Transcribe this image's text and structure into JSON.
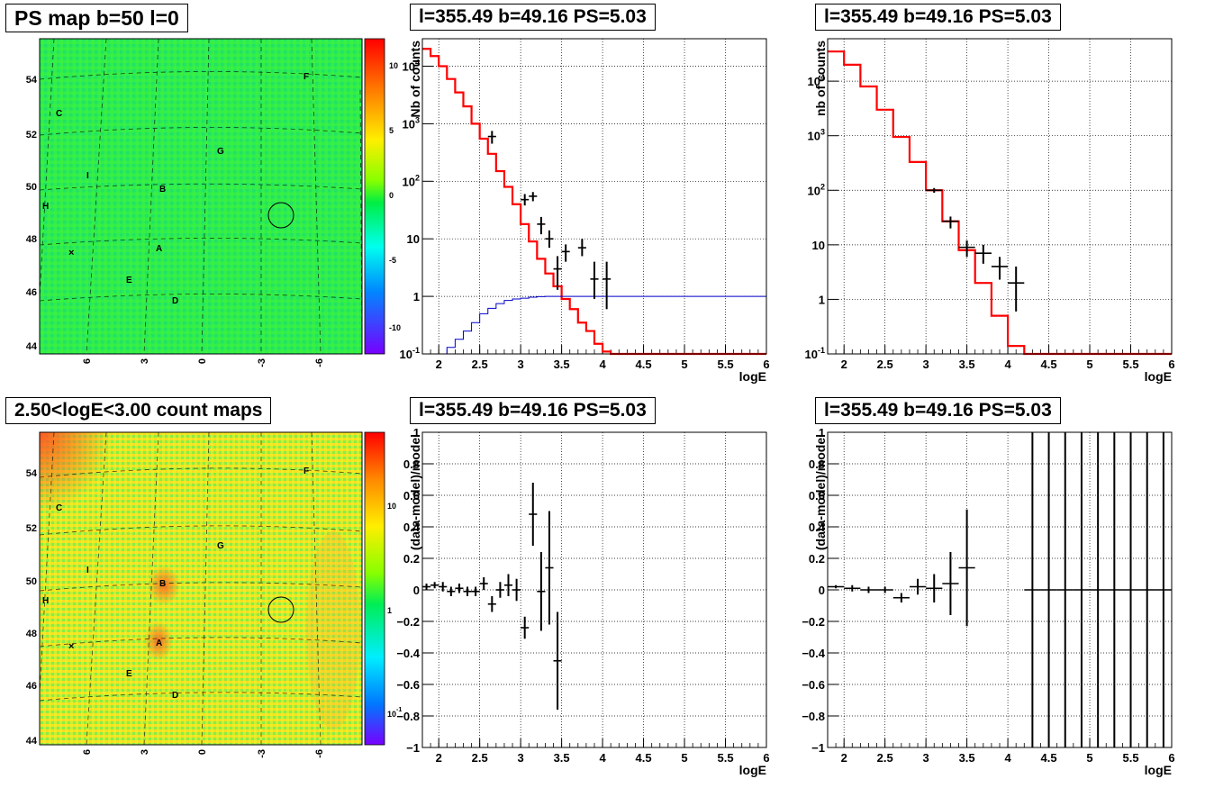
{
  "titles": {
    "psmap": "PS map b=50 l=0",
    "countmap": "2.50<logE<3.00 count maps",
    "spec1": "l=355.49 b=49.16 PS=5.03",
    "spec2": "l=355.49 b=49.16 PS=5.03",
    "resid1": "l=355.49 b=49.16 PS=5.03",
    "resid2": "l=355.49 b=49.16 PS=5.03"
  },
  "chart_data": [
    {
      "id": "psmap",
      "type": "heatmap",
      "title": "PS map b=50 l=0",
      "y_ticks": [
        "44",
        "46",
        "48",
        "50",
        "52",
        "54"
      ],
      "x_ticks": [
        "6",
        "3",
        "0",
        "-3",
        "-6"
      ],
      "colorbar_ticks": [
        "10",
        "5",
        "0",
        "-5",
        "-10"
      ],
      "zlim": [
        -13,
        13
      ],
      "source_labels": [
        "F",
        "C",
        "G",
        "I",
        "B",
        "H",
        "A",
        "E",
        "D"
      ],
      "markers": [
        "x",
        "circle"
      ]
    },
    {
      "id": "countmap",
      "type": "heatmap",
      "title": "2.50<logE<3.00 count maps",
      "y_ticks": [
        "44",
        "46",
        "48",
        "50",
        "52",
        "54"
      ],
      "x_ticks": [
        "6",
        "3",
        "0",
        "-3",
        "-6"
      ],
      "colorbar_ticks": [
        "10",
        "1",
        "10^-1"
      ],
      "zscale": "log",
      "source_labels": [
        "F",
        "C",
        "G",
        "I",
        "B",
        "H",
        "A",
        "E",
        "D"
      ],
      "markers": [
        "x",
        "circle"
      ]
    },
    {
      "id": "spec1",
      "type": "line",
      "title": "l=355.49 b=49.16 PS=5.03",
      "xlabel": "logE",
      "ylabel": "Nb of counts",
      "yscale": "log",
      "xlim": [
        1.8,
        6
      ],
      "ylim": [
        0.1,
        30000
      ],
      "x_ticks": [
        "2",
        "2.5",
        "3",
        "3.5",
        "4",
        "4.5",
        "5",
        "5.5",
        "6"
      ],
      "y_ticks": [
        "10^-1",
        "1",
        "10",
        "10^2",
        "10^3",
        "10^4"
      ],
      "grid": true,
      "series": [
        {
          "style": "step",
          "color": "#ff0000",
          "edges": [
            1.8,
            1.9,
            2.0,
            2.1,
            2.2,
            2.3,
            2.4,
            2.5,
            2.6,
            2.7,
            2.8,
            2.9,
            3.0,
            3.1,
            3.2,
            3.3,
            3.4,
            3.5,
            3.6,
            3.7,
            3.8,
            3.9,
            4.0,
            4.1,
            4.2,
            6.0
          ],
          "values": [
            20000,
            15000,
            10000,
            6000,
            3500,
            2000,
            1000,
            550,
            300,
            150,
            80,
            40,
            18,
            9,
            4.5,
            2.5,
            1.5,
            0.9,
            0.6,
            0.35,
            0.25,
            0.15,
            0.11,
            0.1,
            0.1
          ]
        },
        {
          "style": "step",
          "color": "#0000cc",
          "edges": [
            1.8,
            1.9,
            2.0,
            2.1,
            2.2,
            2.3,
            2.4,
            2.5,
            2.6,
            2.7,
            2.8,
            2.9,
            3.0,
            3.1,
            3.2,
            3.3,
            3.4,
            6.0
          ],
          "values": [
            0.07,
            0.08,
            0.1,
            0.13,
            0.18,
            0.25,
            0.35,
            0.5,
            0.62,
            0.75,
            0.85,
            0.9,
            0.93,
            0.97,
            0.99,
            1.0,
            1.0
          ]
        },
        {
          "style": "errorbars",
          "color": "#000000",
          "x": [
            2.65,
            3.05,
            3.15,
            3.25,
            3.35,
            3.45,
            3.55,
            3.75,
            3.9,
            4.05
          ],
          "y": [
            600,
            48,
            55,
            18,
            10,
            3,
            6,
            7,
            2,
            2
          ],
          "ylow": [
            450,
            38,
            45,
            12,
            7,
            1.3,
            4,
            5,
            0.9,
            0.6
          ],
          "yhigh": [
            750,
            60,
            65,
            24,
            14,
            5,
            8,
            10,
            4,
            4
          ],
          "xerr": 0.05
        }
      ]
    },
    {
      "id": "spec2",
      "type": "line",
      "title": "l=355.49 b=49.16 PS=5.03",
      "xlabel": "logE",
      "ylabel": "nb of counts",
      "yscale": "log",
      "xlim": [
        1.8,
        6
      ],
      "ylim": [
        0.1,
        60000
      ],
      "x_ticks": [
        "2",
        "2.5",
        "3",
        "3.5",
        "4",
        "4.5",
        "5",
        "5.5",
        "6"
      ],
      "y_ticks": [
        "10^-1",
        "1",
        "10",
        "10^2",
        "10^3",
        "10^4"
      ],
      "grid": true,
      "series": [
        {
          "style": "step",
          "color": "#ff0000",
          "edges": [
            1.8,
            2.0,
            2.2,
            2.4,
            2.6,
            2.8,
            3.0,
            3.2,
            3.4,
            3.6,
            3.8,
            4.0,
            4.2,
            6.0
          ],
          "values": [
            35000,
            20000,
            8000,
            3000,
            950,
            330,
            100,
            27,
            8,
            2,
            0.5,
            0.14,
            0.1
          ]
        },
        {
          "style": "errorbars",
          "color": "#000000",
          "x": [
            3.1,
            3.3,
            3.5,
            3.7,
            3.9,
            4.1
          ],
          "y": [
            100,
            27,
            9,
            7,
            4,
            2
          ],
          "ylow": [
            90,
            20,
            6,
            4.5,
            2.3,
            0.6
          ],
          "yhigh": [
            110,
            33,
            12,
            10,
            6,
            4
          ],
          "xerr": 0.1
        }
      ]
    },
    {
      "id": "resid1",
      "type": "scatter",
      "title": "l=355.49 b=49.16 PS=5.03",
      "xlabel": "logE",
      "ylabel": "(data-model)/model",
      "xlim": [
        1.8,
        6
      ],
      "ylim": [
        -1,
        1
      ],
      "x_ticks": [
        "2",
        "2.5",
        "3",
        "3.5",
        "4",
        "4.5",
        "5",
        "5.5",
        "6"
      ],
      "y_ticks": [
        "-1",
        "-0.8",
        "-0.6",
        "-0.4",
        "-0.2",
        "0",
        "0.2",
        "0.4",
        "0.6",
        "0.8",
        "1"
      ],
      "grid": true,
      "series": [
        {
          "style": "errorbars",
          "color": "#000000",
          "x": [
            1.85,
            1.95,
            2.05,
            2.15,
            2.25,
            2.35,
            2.45,
            2.55,
            2.65,
            2.75,
            2.85,
            2.95,
            3.05,
            3.15,
            3.25,
            3.35,
            3.45
          ],
          "y": [
            0.02,
            0.03,
            0.02,
            -0.01,
            0.01,
            -0.01,
            -0.01,
            0.04,
            -0.09,
            0.0,
            0.03,
            0.0,
            -0.24,
            0.48,
            -0.01,
            0.14,
            -0.45
          ],
          "yerr": [
            0.02,
            0.02,
            0.03,
            0.03,
            0.03,
            0.03,
            0.03,
            0.04,
            0.05,
            0.05,
            0.07,
            0.07,
            0.07,
            0.2,
            0.25,
            0.36,
            0.31
          ],
          "xerr": 0.05
        }
      ]
    },
    {
      "id": "resid2",
      "type": "scatter",
      "title": "l=355.49 b=49.16 PS=5.03",
      "xlabel": "logE",
      "ylabel": "(data-model)/model",
      "xlim": [
        1.8,
        6
      ],
      "ylim": [
        -1,
        1
      ],
      "x_ticks": [
        "2",
        "2.5",
        "3",
        "3.5",
        "4",
        "4.5",
        "5",
        "5.5",
        "6"
      ],
      "y_ticks": [
        "-1",
        "-0.8",
        "-0.6",
        "-0.4",
        "-0.2",
        "0",
        "0.2",
        "0.4",
        "0.6",
        "0.8",
        "1"
      ],
      "grid": true,
      "series": [
        {
          "style": "errorbars",
          "color": "#000000",
          "x": [
            1.9,
            2.1,
            2.3,
            2.5,
            2.7,
            2.9,
            3.1,
            3.3,
            3.5,
            4.3,
            4.5,
            4.7,
            4.9,
            5.1,
            5.3,
            5.5,
            5.7,
            5.9
          ],
          "y": [
            0.02,
            0.01,
            -0.0,
            0.0,
            -0.05,
            0.02,
            0.01,
            0.04,
            0.14,
            0,
            0,
            0,
            0,
            0,
            0,
            0,
            0,
            0
          ],
          "yerr": [
            0.01,
            0.02,
            0.02,
            0.02,
            0.03,
            0.05,
            0.09,
            0.2,
            0.37,
            1,
            1,
            1,
            1,
            1,
            1,
            1,
            1,
            1
          ],
          "xerr": 0.1
        }
      ]
    }
  ]
}
